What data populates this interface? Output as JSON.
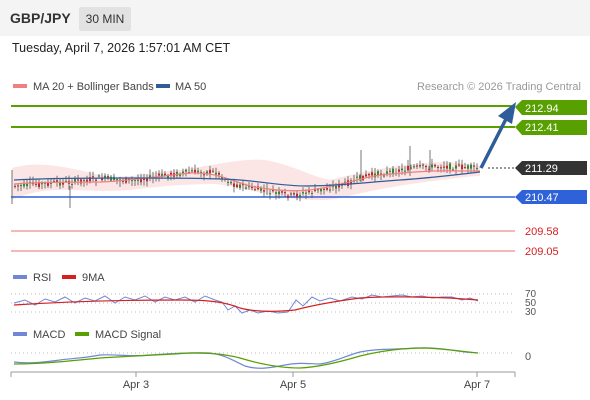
{
  "header": {
    "pair": "GBP/JPY",
    "timeframe": "30 MIN",
    "timestamp": "Tuesday, April 7, 2026 1:57:01 AM CET"
  },
  "main_legend": {
    "ma20_label": "MA 20 + Bollinger Bands",
    "ma50_label": "MA 50",
    "attribution": "Research © 2026 Trading Central"
  },
  "levels": [
    {
      "value": "212.94",
      "style": "green",
      "color": "#58a000"
    },
    {
      "value": "212.41",
      "style": "green",
      "color": "#58a000"
    },
    {
      "value": "211.29",
      "style": "current",
      "color": "#333333"
    },
    {
      "value": "210.47",
      "style": "blue",
      "color": "#2f62d8"
    },
    {
      "value": "209.58",
      "style": "red",
      "color": "#d42020"
    },
    {
      "value": "209.05",
      "style": "red",
      "color": "#d42020"
    }
  ],
  "rsi_panel": {
    "rsi_label": "RSI",
    "ma_label": "9MA",
    "levels": [
      "70",
      "50",
      "30"
    ]
  },
  "macd_panel": {
    "macd_label": "MACD",
    "signal_label": "MACD Signal",
    "zero": "0"
  },
  "x_axis": [
    "Apr 3",
    "Apr 5",
    "Apr 7"
  ],
  "colors": {
    "ma20": "#f08080",
    "ma50": "#2f5d9a",
    "arrow": "#2f5d9a",
    "rsi": "#6f87d6",
    "rsi_ma": "#d42020",
    "macd": "#6f87d6",
    "signal": "#58a000"
  }
}
